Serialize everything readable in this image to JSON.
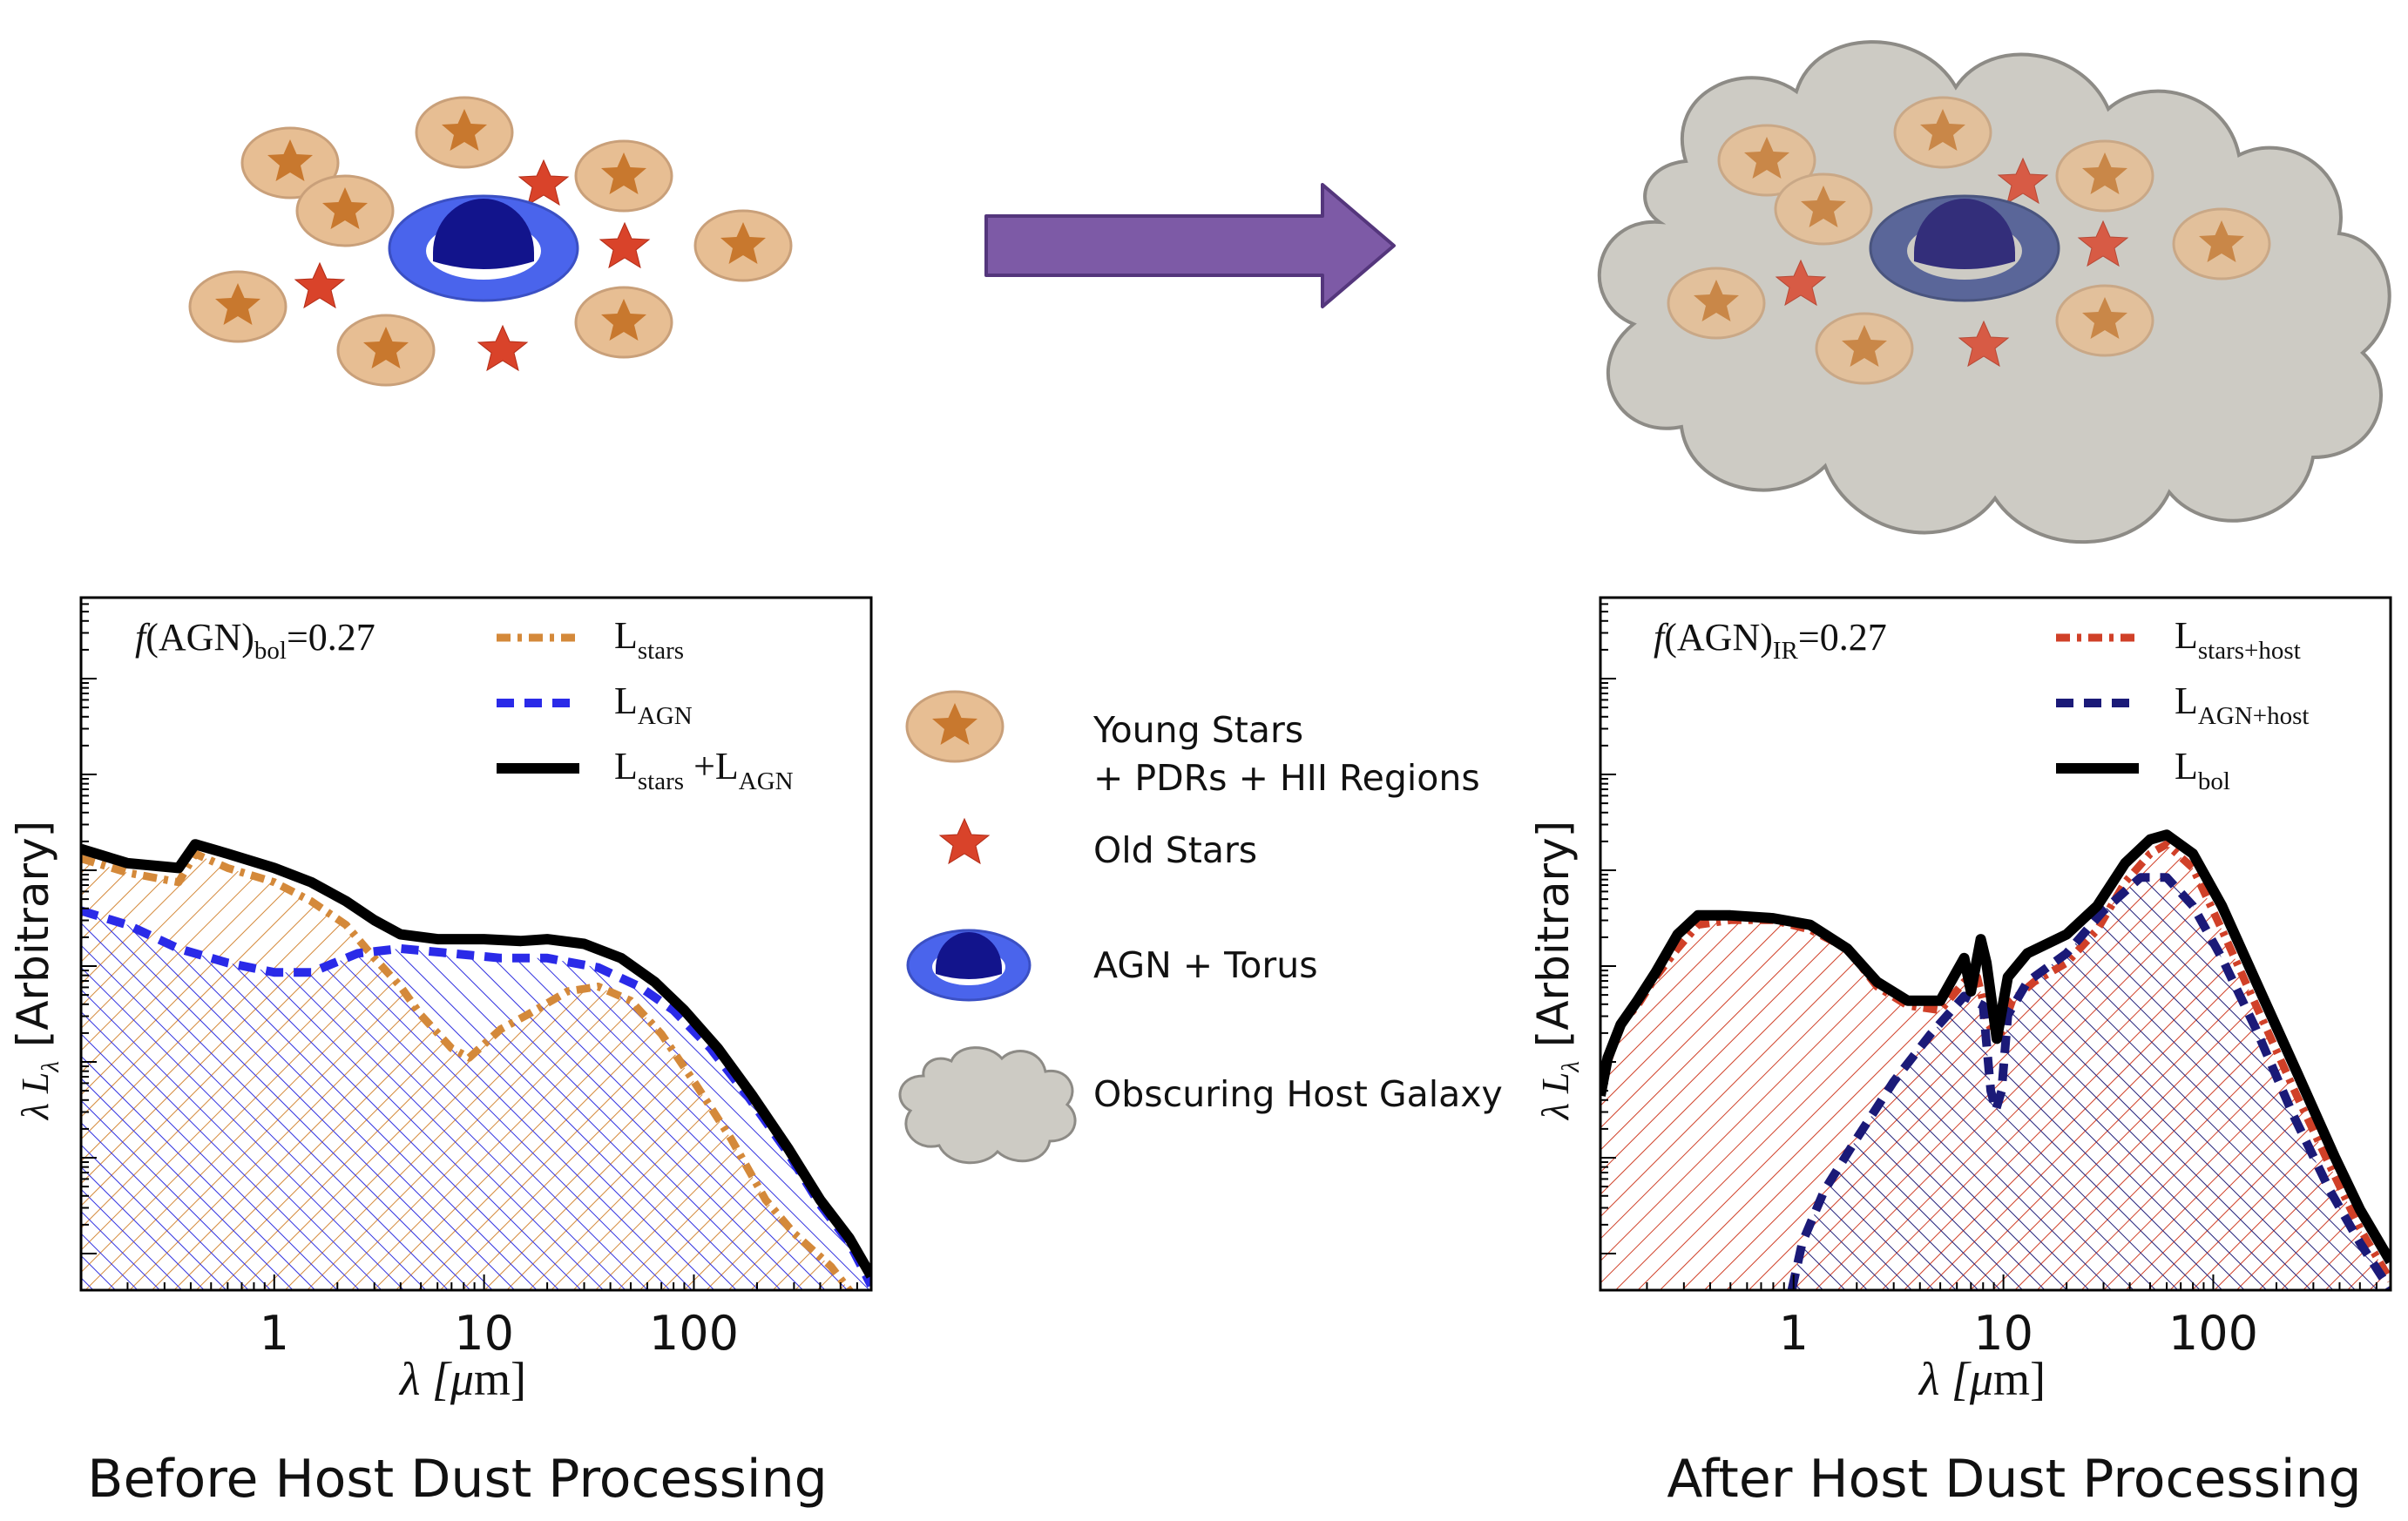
{
  "colors": {
    "young_star_fill": "#e7be93",
    "young_star_edge": "#c89b6d",
    "star_orange": "#c97a2e",
    "old_star": "#d9432a",
    "torus": "#4a64ec",
    "torus_obscured": "#5a6699",
    "nucleus": "#12148c",
    "nucleus_obscured": "#332e7a",
    "cloud_fill": "#cdcbc4",
    "cloud_edge": "#8d8b86",
    "arrow": "#7d5aa6",
    "arrow_edge": "#54367c",
    "stars_line": "#d4893a",
    "agn_line": "#2a2ae8",
    "stars_host_line": "#d04028",
    "agn_host_line": "#1b1a78",
    "total_line": "#000000"
  },
  "legend": {
    "young_stars_line1": "Young Stars",
    "young_stars_line2": "+ PDRs + HII Regions",
    "old_stars": "Old Stars",
    "agn_torus": "AGN + Torus",
    "host_galaxy": "Obscuring Host Galaxy"
  },
  "captions": {
    "left": "Before Host Dust Processing",
    "right": "After Host Dust Processing"
  },
  "chart_data": [
    {
      "type": "area",
      "title": "Before Host Dust Processing",
      "annotation": {
        "f": "f",
        "main": "(AGN)",
        "sub": "bol",
        "value": "=0.27"
      },
      "xlabel": {
        "main": "λ [",
        "mu": "μ",
        "rest": "m]"
      },
      "ylabel": {
        "main": "λ L",
        "sub": "λ",
        "rest": " [Arbitrary]"
      },
      "xscale": "log",
      "xlim": [
        0.12,
        700
      ],
      "ylim": [
        0,
        7.3
      ],
      "xticks": [
        {
          "v": 1,
          "label": "1"
        },
        {
          "v": 10,
          "label": "10"
        },
        {
          "v": 100,
          "label": "100"
        }
      ],
      "legend_position": "top-right",
      "series": [
        {
          "key": "stars",
          "name": "L",
          "sub": "stars",
          "style": "dashdot",
          "hatch": "ne",
          "points": [
            [
              0.12,
              4.55
            ],
            [
              0.2,
              4.4
            ],
            [
              0.35,
              4.3
            ],
            [
              0.42,
              4.6
            ],
            [
              0.6,
              4.45
            ],
            [
              1,
              4.3
            ],
            [
              1.5,
              4.1
            ],
            [
              2.2,
              3.85
            ],
            [
              3,
              3.5
            ],
            [
              4,
              3.2
            ],
            [
              5,
              2.9
            ],
            [
              7,
              2.55
            ],
            [
              8.5,
              2.45
            ],
            [
              12,
              2.75
            ],
            [
              16,
              2.9
            ],
            [
              25,
              3.15
            ],
            [
              35,
              3.2
            ],
            [
              50,
              3.05
            ],
            [
              70,
              2.7
            ],
            [
              100,
              2.2
            ],
            [
              150,
              1.6
            ],
            [
              220,
              0.95
            ],
            [
              300,
              0.6
            ],
            [
              450,
              0.25
            ],
            [
              700,
              -0.3
            ]
          ]
        },
        {
          "key": "agn",
          "name": "L",
          "sub": "AGN",
          "style": "dashed",
          "hatch": "nw",
          "points": [
            [
              0.12,
              4.0
            ],
            [
              0.2,
              3.85
            ],
            [
              0.35,
              3.6
            ],
            [
              0.6,
              3.45
            ],
            [
              1,
              3.35
            ],
            [
              1.5,
              3.35
            ],
            [
              2.5,
              3.55
            ],
            [
              4,
              3.6
            ],
            [
              7,
              3.55
            ],
            [
              12,
              3.5
            ],
            [
              20,
              3.5
            ],
            [
              35,
              3.4
            ],
            [
              55,
              3.2
            ],
            [
              80,
              2.95
            ],
            [
              120,
              2.55
            ],
            [
              180,
              2.05
            ],
            [
              280,
              1.45
            ],
            [
              400,
              0.9
            ],
            [
              550,
              0.5
            ],
            [
              700,
              0.05
            ]
          ]
        },
        {
          "key": "total",
          "name": "L",
          "sub": "stars",
          "name2": " +L",
          "sub2": "AGN",
          "style": "solid",
          "points": [
            [
              0.12,
              4.65
            ],
            [
              0.2,
              4.5
            ],
            [
              0.35,
              4.45
            ],
            [
              0.42,
              4.7
            ],
            [
              0.6,
              4.6
            ],
            [
              1,
              4.45
            ],
            [
              1.5,
              4.3
            ],
            [
              2.2,
              4.1
            ],
            [
              3,
              3.9
            ],
            [
              4,
              3.75
            ],
            [
              6,
              3.7
            ],
            [
              10,
              3.7
            ],
            [
              15,
              3.68
            ],
            [
              20,
              3.7
            ],
            [
              30,
              3.65
            ],
            [
              45,
              3.5
            ],
            [
              65,
              3.25
            ],
            [
              90,
              2.95
            ],
            [
              130,
              2.55
            ],
            [
              190,
              2.05
            ],
            [
              280,
              1.5
            ],
            [
              400,
              0.95
            ],
            [
              550,
              0.55
            ],
            [
              700,
              0.15
            ]
          ]
        }
      ]
    },
    {
      "type": "area",
      "title": "After Host Dust Processing",
      "annotation": {
        "f": "f",
        "main": "(AGN)",
        "sub": "IR",
        "value": "=0.27"
      },
      "xlabel": {
        "main": "λ [",
        "mu": "μ",
        "rest": "m]"
      },
      "ylabel": {
        "main": "λ L",
        "sub": "λ",
        "rest": " [Arbitrary]"
      },
      "xscale": "log",
      "xlim": [
        0.12,
        700
      ],
      "ylim": [
        0,
        7.3
      ],
      "xticks": [
        {
          "v": 1,
          "label": "1"
        },
        {
          "v": 10,
          "label": "10"
        },
        {
          "v": 100,
          "label": "100"
        }
      ],
      "legend_position": "top-right",
      "series": [
        {
          "key": "stars",
          "name": "L",
          "sub": "stars+host",
          "style": "dashdot",
          "hatch": "ne",
          "points": [
            [
              0.12,
              2.1
            ],
            [
              0.13,
              2.4
            ],
            [
              0.15,
              2.8
            ],
            [
              0.18,
              3.0
            ],
            [
              0.22,
              3.3
            ],
            [
              0.28,
              3.6
            ],
            [
              0.35,
              3.85
            ],
            [
              0.5,
              3.9
            ],
            [
              0.8,
              3.9
            ],
            [
              1.2,
              3.8
            ],
            [
              1.8,
              3.6
            ],
            [
              2.5,
              3.2
            ],
            [
              3.5,
              3.0
            ],
            [
              5,
              2.95
            ],
            [
              6.5,
              3.25
            ],
            [
              7.5,
              3.3
            ],
            [
              8.5,
              2.8
            ],
            [
              9.5,
              2.65
            ],
            [
              11,
              3.05
            ],
            [
              14,
              3.25
            ],
            [
              20,
              3.45
            ],
            [
              28,
              3.8
            ],
            [
              38,
              4.3
            ],
            [
              50,
              4.6
            ],
            [
              60,
              4.7
            ],
            [
              80,
              4.45
            ],
            [
              110,
              3.8
            ],
            [
              160,
              3.0
            ],
            [
              250,
              2.05
            ],
            [
              380,
              1.2
            ],
            [
              500,
              0.65
            ],
            [
              700,
              0.1
            ]
          ]
        },
        {
          "key": "agn",
          "name": "L",
          "sub": "AGN+host",
          "style": "dashed",
          "hatch": "nw",
          "points": [
            [
              0.98,
              0.0
            ],
            [
              1.1,
              0.5
            ],
            [
              1.4,
              1.05
            ],
            [
              2,
              1.6
            ],
            [
              3,
              2.2
            ],
            [
              4.5,
              2.7
            ],
            [
              6.5,
              3.1
            ],
            [
              8,
              3.0
            ],
            [
              8.7,
              2.1
            ],
            [
              9.2,
              1.9
            ],
            [
              9.8,
              2.1
            ],
            [
              10.5,
              2.9
            ],
            [
              13,
              3.25
            ],
            [
              20,
              3.55
            ],
            [
              30,
              4.0
            ],
            [
              45,
              4.35
            ],
            [
              60,
              4.35
            ],
            [
              80,
              4.05
            ],
            [
              110,
              3.5
            ],
            [
              160,
              2.75
            ],
            [
              240,
              1.85
            ],
            [
              360,
              1.05
            ],
            [
              500,
              0.5
            ],
            [
              700,
              0.0
            ]
          ]
        },
        {
          "key": "total",
          "name": "L",
          "sub": "bol",
          "style": "solid",
          "points": [
            [
              0.12,
              2.05
            ],
            [
              0.13,
              2.45
            ],
            [
              0.15,
              2.8
            ],
            [
              0.18,
              3.05
            ],
            [
              0.22,
              3.35
            ],
            [
              0.28,
              3.75
            ],
            [
              0.35,
              3.95
            ],
            [
              0.5,
              3.95
            ],
            [
              0.8,
              3.92
            ],
            [
              1.2,
              3.85
            ],
            [
              1.8,
              3.6
            ],
            [
              2.5,
              3.25
            ],
            [
              3.5,
              3.05
            ],
            [
              5,
              3.05
            ],
            [
              6.5,
              3.5
            ],
            [
              7,
              3.15
            ],
            [
              7.8,
              3.7
            ],
            [
              8.3,
              3.45
            ],
            [
              9.3,
              2.65
            ],
            [
              10.5,
              3.3
            ],
            [
              13,
              3.55
            ],
            [
              20,
              3.75
            ],
            [
              28,
              4.05
            ],
            [
              38,
              4.5
            ],
            [
              50,
              4.75
            ],
            [
              60,
              4.8
            ],
            [
              80,
              4.6
            ],
            [
              110,
              4.05
            ],
            [
              160,
              3.25
            ],
            [
              250,
              2.3
            ],
            [
              380,
              1.4
            ],
            [
              500,
              0.85
            ],
            [
              700,
              0.3
            ]
          ]
        }
      ]
    }
  ]
}
